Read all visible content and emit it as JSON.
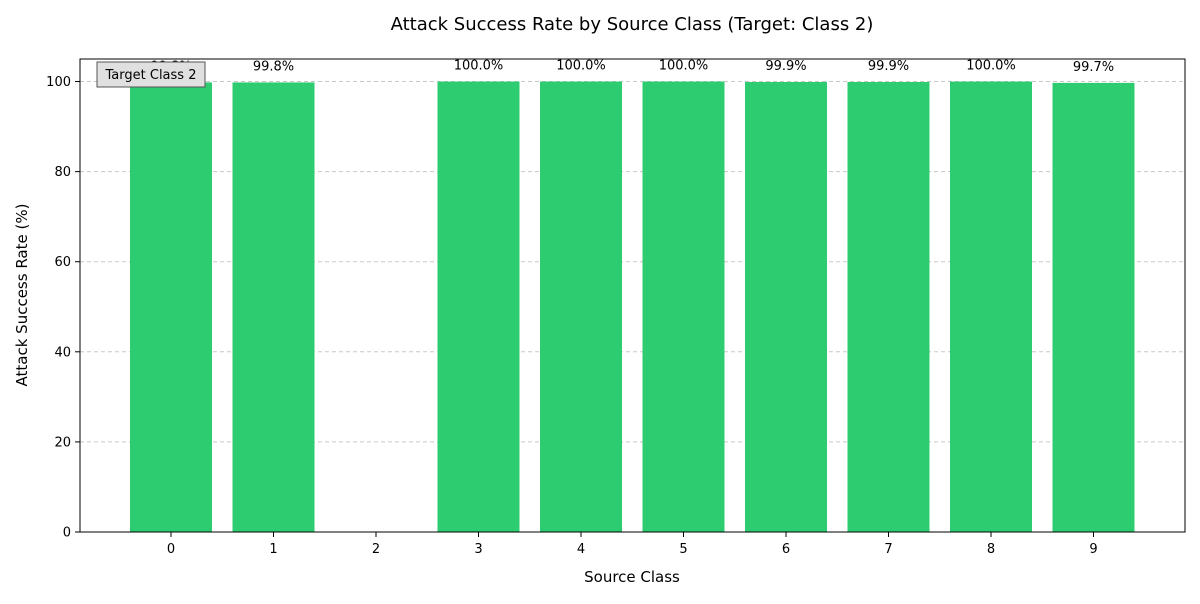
{
  "chart_data": {
    "type": "bar",
    "title": "Attack Success Rate by Source Class (Target: Class 2)",
    "xlabel": "Source Class",
    "ylabel": "Attack Success Rate (%)",
    "categories": [
      "0",
      "1",
      "2",
      "3",
      "4",
      "5",
      "6",
      "7",
      "8",
      "9"
    ],
    "values": [
      99.8,
      99.8,
      null,
      100.0,
      100.0,
      100.0,
      99.9,
      99.9,
      100.0,
      99.7
    ],
    "data_labels": [
      "99.8%",
      "99.8%",
      "",
      "100.0%",
      "100.0%",
      "100.0%",
      "99.9%",
      "99.9%",
      "100.0%",
      "99.7%"
    ],
    "ylim": [
      0,
      105
    ],
    "yticks": [
      0,
      20,
      40,
      60,
      80,
      100
    ],
    "grid": "y-dashed",
    "bar_color": "#2ecc71",
    "annotation": {
      "text": "Target Class 2",
      "placement": "top-left"
    }
  }
}
